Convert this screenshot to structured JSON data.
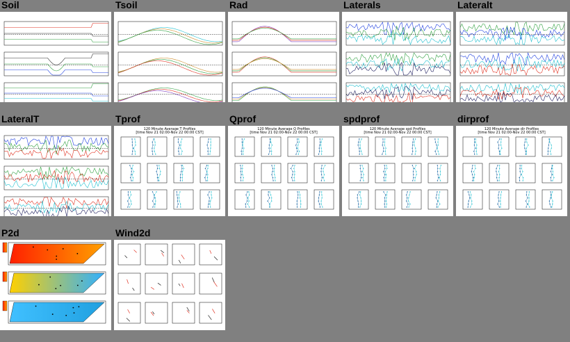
{
  "panels": [
    {
      "id": "soil",
      "label": "Soil",
      "kind": "ts3",
      "colors": [
        "#e03020",
        "#303030",
        "#30a040",
        "#2040e0",
        "#20c0d0"
      ]
    },
    {
      "id": "tsoil",
      "label": "Tsoil",
      "kind": "tsoil",
      "colors": [
        "#20c0d0",
        "#d09030",
        "#30a040",
        "#e03020",
        "#8040c0"
      ]
    },
    {
      "id": "rad",
      "label": "Rad",
      "kind": "rad",
      "colors": [
        "#8040c0",
        "#e03020",
        "#30a040",
        "#d09030",
        "#2040e0"
      ]
    },
    {
      "id": "laterals",
      "label": "Laterals",
      "kind": "noise3",
      "colors": [
        "#2040e0",
        "#30a040",
        "#20c0d0",
        "#202060",
        "#e03020"
      ]
    },
    {
      "id": "lateralt",
      "label": "Lateralt",
      "kind": "noise3",
      "colors": [
        "#30a040",
        "#2040e0",
        "#20c0d0",
        "#e03020",
        "#202060"
      ]
    },
    {
      "id": "lateralT",
      "label": "LateralT",
      "kind": "noise3",
      "colors": [
        "#2040e0",
        "#30a040",
        "#e03020",
        "#20c0d0",
        "#202060"
      ]
    },
    {
      "id": "tprof",
      "label": "Tprof",
      "kind": "prof",
      "title1": "120 Minute Average T Profiles",
      "title2": "[time Nov 21 02:00-Nov 22 00:00 CST]"
    },
    {
      "id": "qprof",
      "label": "Qprof",
      "kind": "prof",
      "title1": "120 Minute Average Q Profiles",
      "title2": "[time Nov 21 02:00-Nov 22 00:00 CST]"
    },
    {
      "id": "spdprof",
      "label": "spdprof",
      "kind": "prof",
      "title1": "120 Minute Average spd Profiles",
      "title2": "[time Nov 21 02:00-Nov 22 00:00 CST]"
    },
    {
      "id": "dirprof",
      "label": "dirprof",
      "kind": "prof",
      "title1": "120 Minute Average dir Profiles",
      "title2": "[time Nov 21 02:00-Nov 22 00:00 CST]"
    },
    {
      "id": "p2d",
      "label": "P2d",
      "kind": "p2d"
    },
    {
      "id": "wind2d",
      "label": "Wind2d",
      "kind": "wind2d"
    }
  ]
}
